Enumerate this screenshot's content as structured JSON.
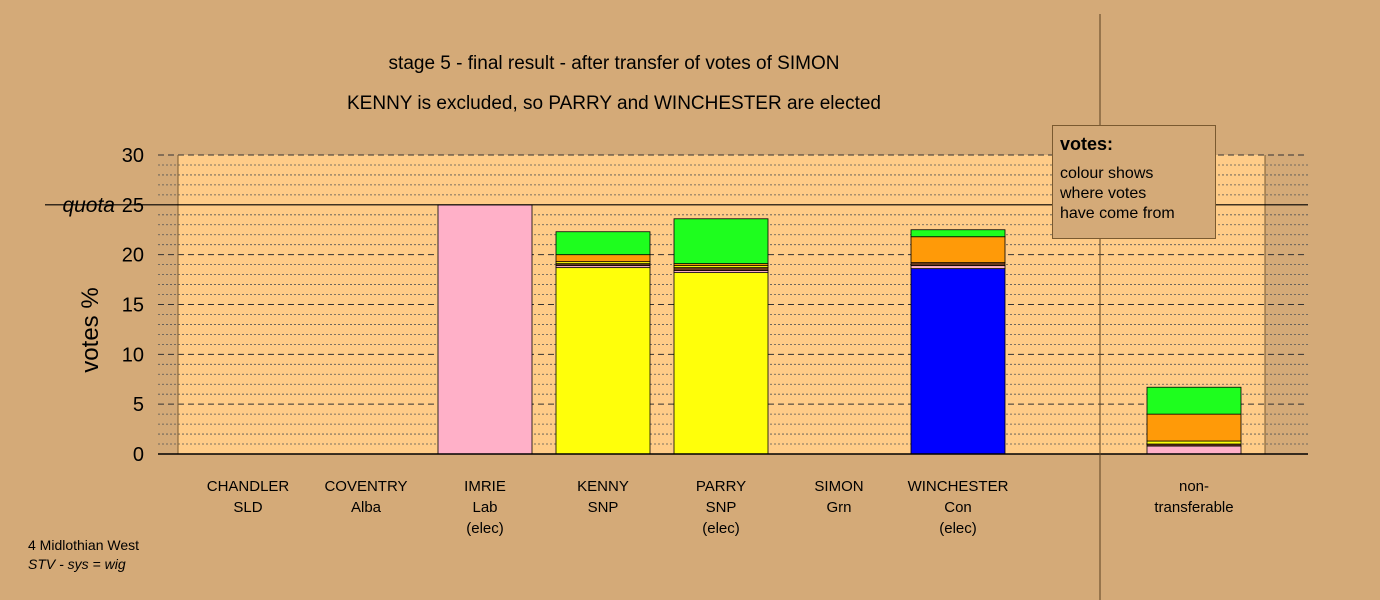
{
  "titles": {
    "line1": "stage 5 - final result - after transfer of votes of SIMON",
    "line2": "KENNY is excluded, so PARRY and WINCHESTER are elected"
  },
  "legend": {
    "title": "votes:",
    "lines": [
      "colour shows",
      "where votes",
      "have come from"
    ]
  },
  "footer": {
    "line1": "4 Midlothian West",
    "line2": "STV - sys = wig"
  },
  "colors": {
    "background": "#d4aa78",
    "plot_area": "#ffcc88",
    "Lab": "#ffb0c8",
    "SNP": "#ffff0a",
    "Con": "#0000ff",
    "Alba": "#6e3a1e",
    "SLD": "#ff9a08",
    "Grn": "#1efe1e"
  },
  "chart_data": {
    "type": "bar",
    "stacked": true,
    "ylabel": "votes %",
    "ylim": [
      0,
      30
    ],
    "yticks": [
      0,
      5,
      10,
      15,
      20,
      25,
      30
    ],
    "quota": 25,
    "quota_label": "quota",
    "grid": true,
    "candidates": [
      {
        "name": "CHANDLER",
        "party": "SLD",
        "status": "",
        "segments": []
      },
      {
        "name": "COVENTRY",
        "party": "Alba",
        "status": "",
        "segments": []
      },
      {
        "name": "IMRIE",
        "party": "Lab",
        "status": "(elec)",
        "segments": [
          {
            "from": "Lab",
            "value": 25.0
          }
        ]
      },
      {
        "name": "KENNY",
        "party": "SNP",
        "status": "",
        "segments": [
          {
            "from": "SNP",
            "value": 18.7
          },
          {
            "from": "Lab",
            "value": 0.2
          },
          {
            "from": "Alba",
            "value": 0.2
          },
          {
            "from": "SNP",
            "value": 0.2
          },
          {
            "from": "SLD",
            "value": 0.7
          },
          {
            "from": "Grn",
            "value": 2.3
          }
        ]
      },
      {
        "name": "PARRY",
        "party": "SNP",
        "status": "(elec)",
        "segments": [
          {
            "from": "SNP",
            "value": 18.2
          },
          {
            "from": "Lab",
            "value": 0.2
          },
          {
            "from": "Alba",
            "value": 0.3
          },
          {
            "from": "SNP",
            "value": 0.2
          },
          {
            "from": "SLD",
            "value": 0.2
          },
          {
            "from": "Grn",
            "value": 4.5
          }
        ]
      },
      {
        "name": "SIMON",
        "party": "Grn",
        "status": "",
        "segments": []
      },
      {
        "name": "WINCHESTER",
        "party": "Con",
        "status": "(elec)",
        "segments": [
          {
            "from": "Con",
            "value": 18.6
          },
          {
            "from": "Lab",
            "value": 0.3
          },
          {
            "from": "Alba",
            "value": 0.3
          },
          {
            "from": "SLD",
            "value": 2.6
          },
          {
            "from": "Grn",
            "value": 0.7
          }
        ]
      }
    ],
    "nontransferable": {
      "label1": "non-",
      "label2": "transferable",
      "segments": [
        {
          "from": "Lab",
          "value": 0.8
        },
        {
          "from": "Alba",
          "value": 0.2
        },
        {
          "from": "SNP",
          "value": 0.3
        },
        {
          "from": "SLD",
          "value": 2.7
        },
        {
          "from": "Grn",
          "value": 2.7
        }
      ]
    }
  }
}
